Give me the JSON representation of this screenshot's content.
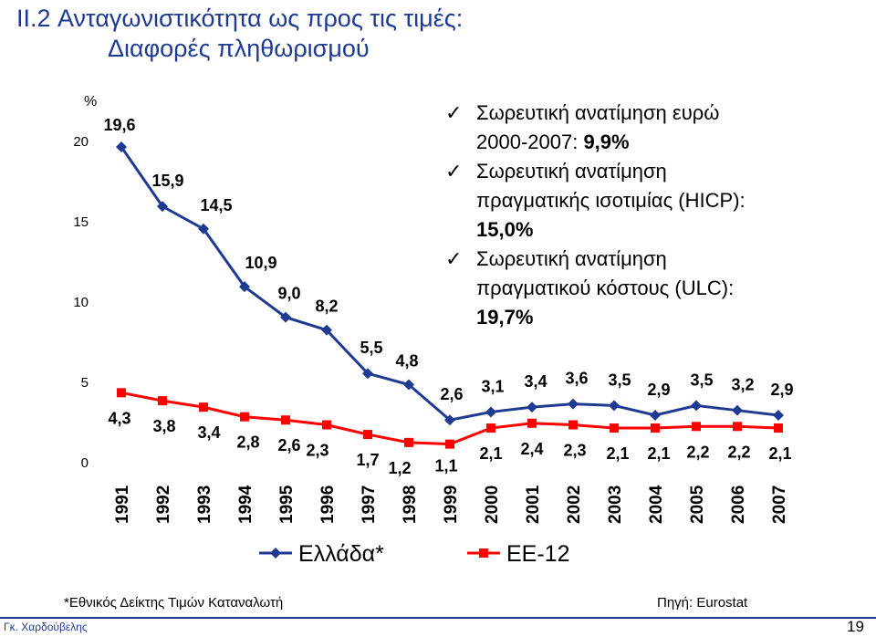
{
  "slide": {
    "title_line1": "II.2  Ανταγωνιστικότητα ως προς τις τιμές:",
    "title_line2": "Διαφορές πληθωρισμού",
    "bullets": [
      {
        "text1": "Σωρευτική ανατίμηση ευρώ",
        "text2": "2000-2007: ",
        "bold": "9,9%"
      },
      {
        "text1": "Σωρευτική ανατίμηση",
        "text2": "πραγματικής ισοτιμίας (HICP):",
        "bold": "15,0%"
      },
      {
        "text1": "Σωρευτική ανατίμηση",
        "text2": "πραγματικού κόστους (ULC):",
        "bold": "19,7%"
      }
    ],
    "check_symbol": "✓",
    "footnote": "*Εθνικός Δείκτης Τιμών Καταναλωτή",
    "source": "Πηγή: Eurostat",
    "author": "Γκ. Χαρδούβελης",
    "page_number": "19"
  },
  "chart_data": {
    "type": "line",
    "ylabel": "%",
    "ylim": [
      0,
      20
    ],
    "yticks": [
      "0",
      "5",
      "10",
      "15",
      "20"
    ],
    "categories": [
      "1991",
      "1992",
      "1993",
      "1994",
      "1995",
      "1996",
      "1997",
      "1998",
      "1999",
      "2000",
      "2001",
      "2002",
      "2003",
      "2004",
      "2005",
      "2006",
      "2007"
    ],
    "series": [
      {
        "name": "Ελλάδα*",
        "color": "#1f3a93",
        "marker": "diamond",
        "values": [
          19.6,
          15.9,
          14.5,
          10.9,
          9.0,
          8.2,
          5.5,
          4.8,
          2.6,
          3.1,
          3.4,
          3.6,
          3.5,
          2.9,
          3.5,
          3.2,
          2.9
        ],
        "labels": [
          "19,6",
          "15,9",
          "14,5",
          "10,9",
          "9,0",
          "8,2",
          "5,5",
          "4,8",
          "2,6",
          "3,1",
          "3,4",
          "3,6",
          "3,5",
          "2,9",
          "3,5",
          "3,2",
          "2,9"
        ]
      },
      {
        "name": "ΕΕ-12",
        "color": "#ff0000",
        "marker": "square",
        "values": [
          4.3,
          3.8,
          3.4,
          2.8,
          2.6,
          2.3,
          1.7,
          1.2,
          1.1,
          2.1,
          2.4,
          2.3,
          2.1,
          2.1,
          2.2,
          2.2,
          2.1
        ],
        "labels": [
          "4,3",
          "3,8",
          "3,4",
          "2,8",
          "2,6",
          "2,3",
          "1,7",
          "1,2",
          "1,1",
          "2,1",
          "2,4",
          "2,3",
          "2,1",
          "2,1",
          "2,2",
          "2,2",
          "2,1"
        ]
      }
    ],
    "legend_position": "bottom"
  }
}
